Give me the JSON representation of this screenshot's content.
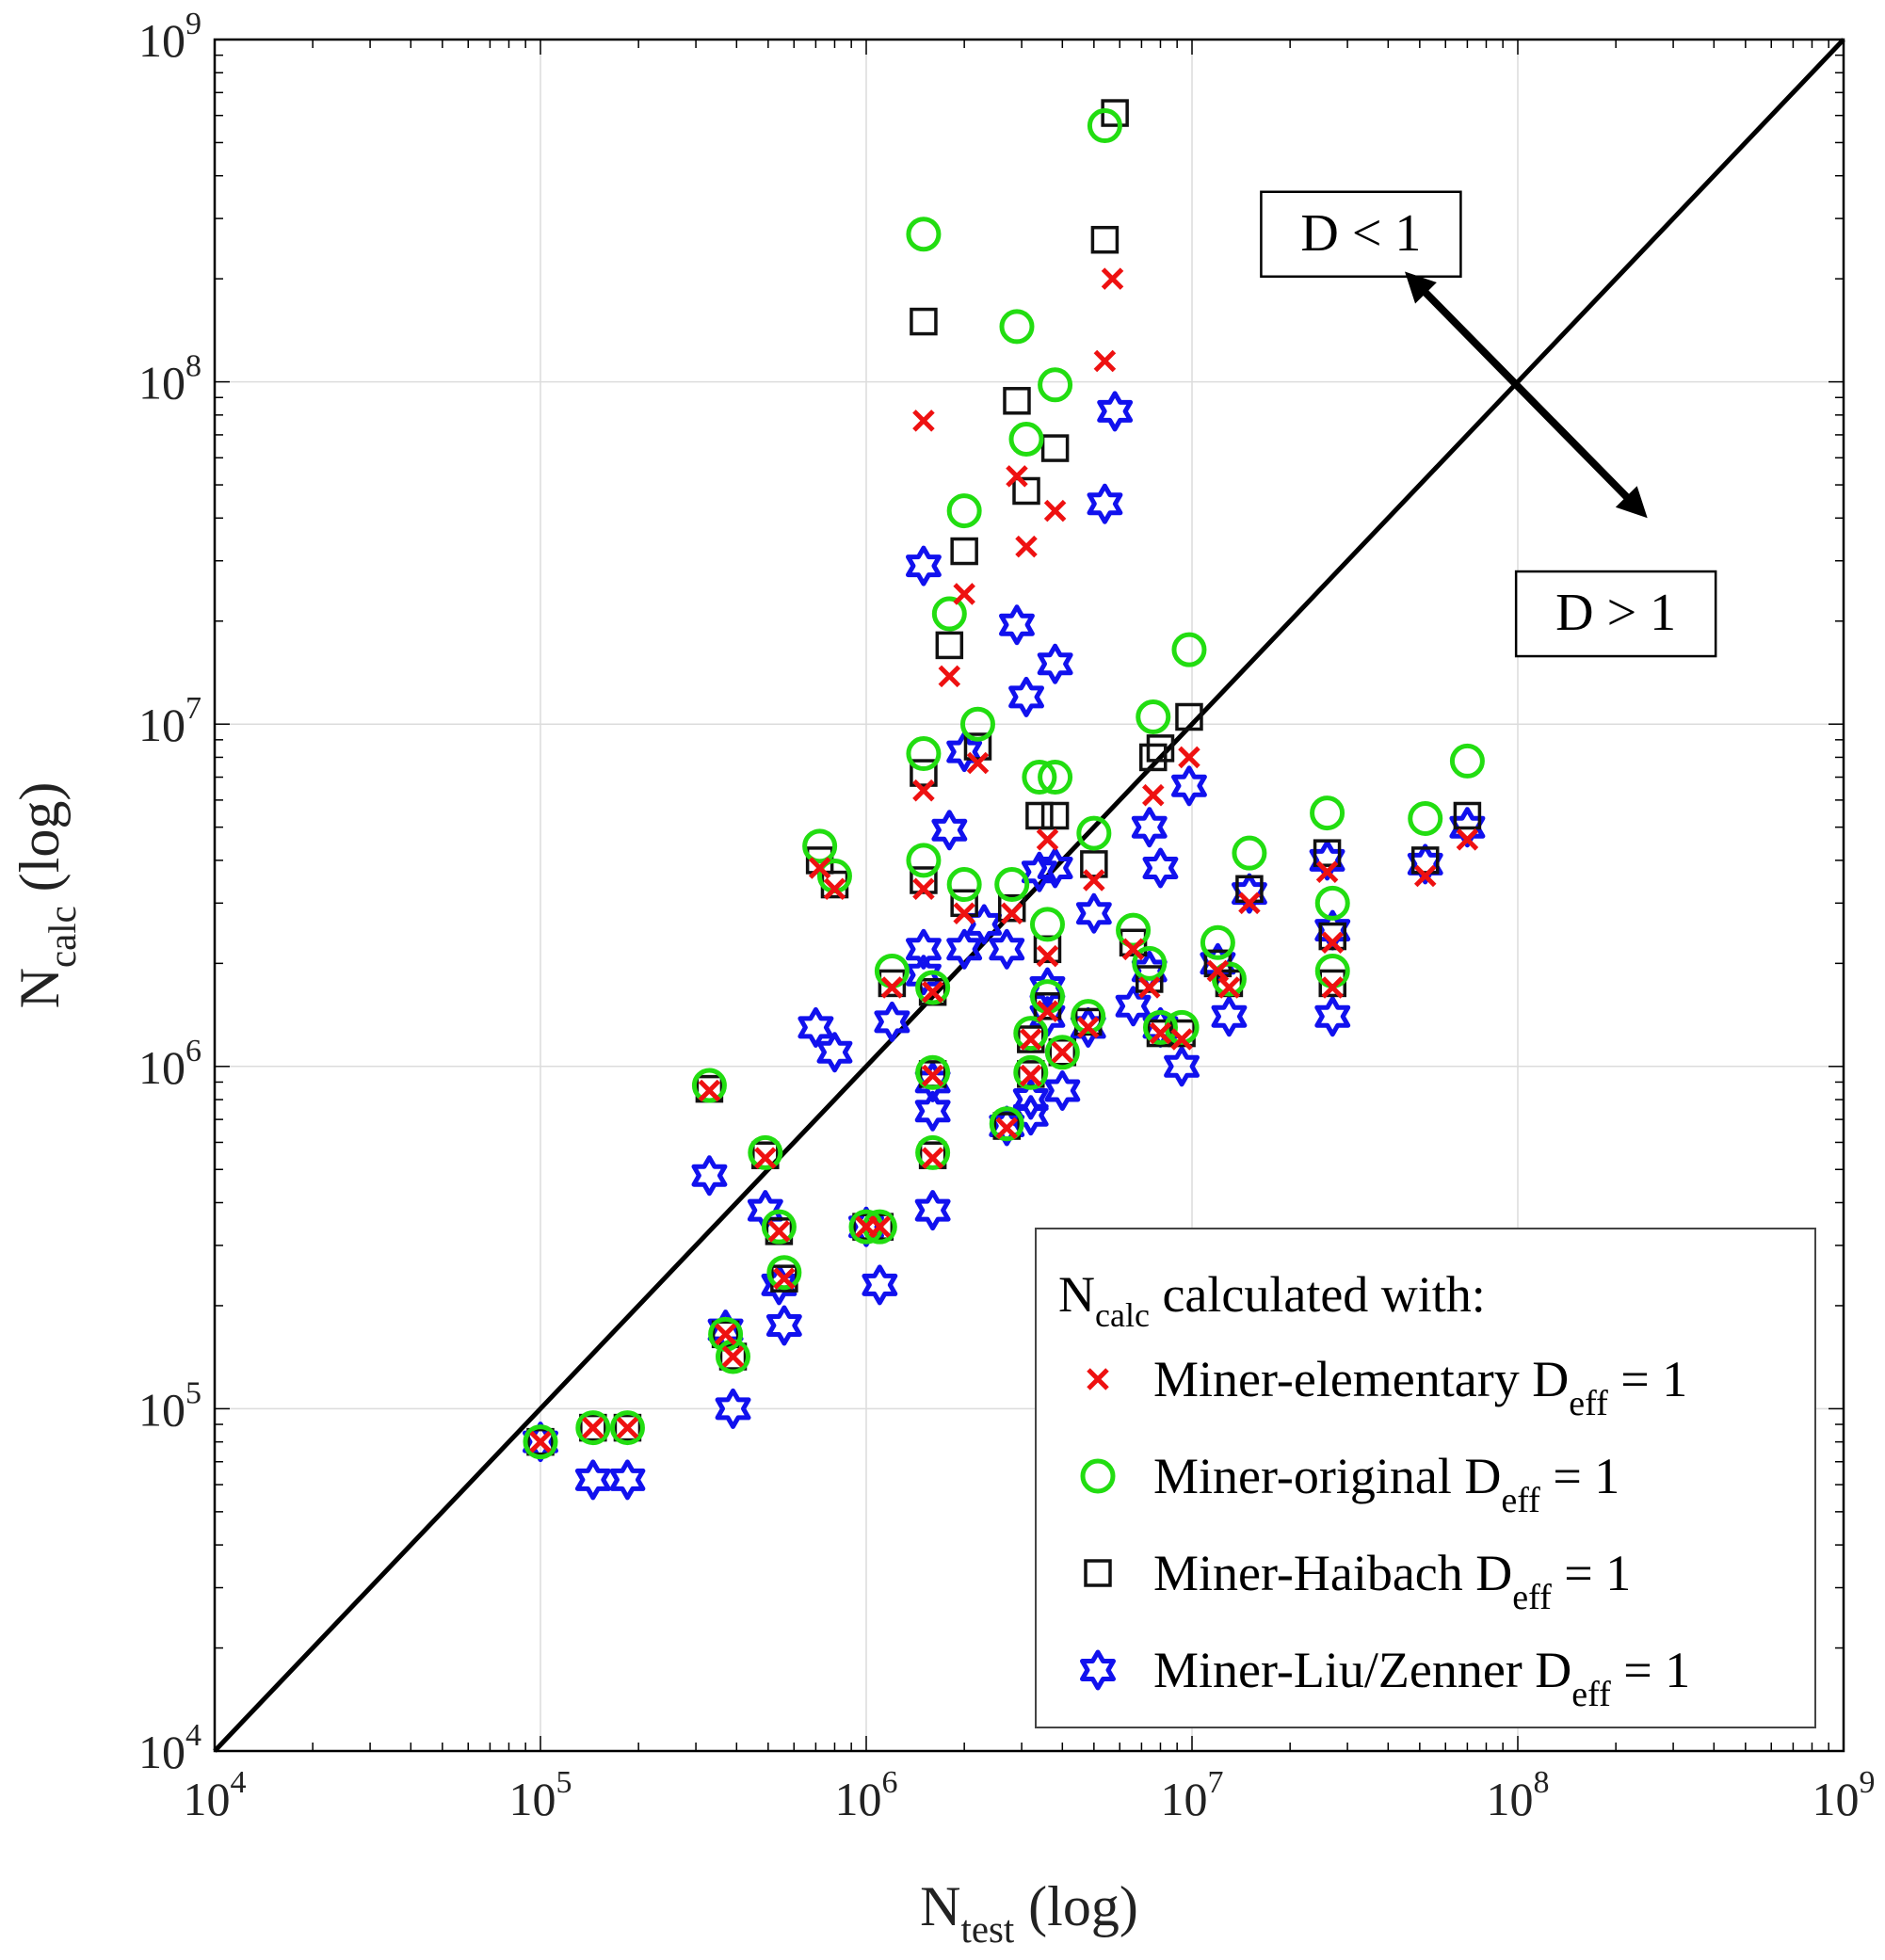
{
  "chart_data": {
    "type": "scatter",
    "x_scale": "log",
    "y_scale": "log",
    "xlim": [
      10000,
      1000000000
    ],
    "ylim": [
      10000,
      1000000000
    ],
    "grid": true,
    "xlabel": {
      "main": "N",
      "sub": "test",
      "suffix": " (log)"
    },
    "ylabel": {
      "main": "N",
      "sub": "calc",
      "suffix": " (log)"
    },
    "x_ticks": [
      {
        "value": 10000,
        "base": "10",
        "exp": "4"
      },
      {
        "value": 100000,
        "base": "10",
        "exp": "5"
      },
      {
        "value": 1000000,
        "base": "10",
        "exp": "6"
      },
      {
        "value": 10000000,
        "base": "10",
        "exp": "7"
      },
      {
        "value": 100000000,
        "base": "10",
        "exp": "8"
      },
      {
        "value": 1000000000,
        "base": "10",
        "exp": "9"
      }
    ],
    "y_ticks": [
      {
        "value": 10000,
        "base": "10",
        "exp": "4"
      },
      {
        "value": 100000,
        "base": "10",
        "exp": "5"
      },
      {
        "value": 1000000,
        "base": "10",
        "exp": "6"
      },
      {
        "value": 10000000,
        "base": "10",
        "exp": "7"
      },
      {
        "value": 100000000,
        "base": "10",
        "exp": "8"
      },
      {
        "value": 1000000000,
        "base": "10",
        "exp": "9"
      }
    ],
    "reference_line": {
      "from": [
        10000,
        10000
      ],
      "to": [
        1000000000,
        1000000000
      ],
      "color": "#000000"
    },
    "annotations": [
      {
        "id": "d-less",
        "text": "D < 1",
        "x": 33000000,
        "y": 270000000
      },
      {
        "id": "d-greater",
        "text": "D > 1",
        "x": 200000000,
        "y": 21000000
      }
    ],
    "double_arrow": {
      "from": [
        45000000,
        210000000
      ],
      "to": [
        250000000,
        40000000
      ]
    },
    "legend": {
      "placement": "bottom-right",
      "title": {
        "main": "N",
        "sub": "calc",
        "suffix": " calculated with:"
      }
    },
    "series": [
      {
        "name": "Miner-elementary",
        "sub": "eff",
        "suffix": " = 1",
        "name_prefix": "D",
        "marker": "x",
        "color": "#ee1111",
        "points": [
          [
            100000.0,
            80000.0
          ],
          [
            145000.0,
            88000.0
          ],
          [
            185000.0,
            88000.0
          ],
          [
            330000.0,
            850000.0
          ],
          [
            370000.0,
            165000.0
          ],
          [
            390000.0,
            142000.0
          ],
          [
            490000.0,
            540000.0
          ],
          [
            540000.0,
            330000.0
          ],
          [
            560000.0,
            240000.0
          ],
          [
            720000.0,
            3800000.0
          ],
          [
            800000.0,
            3300000.0
          ],
          [
            1000000.0,
            340000.0
          ],
          [
            1100000.0,
            340000.0
          ],
          [
            1200000.0,
            1700000.0
          ],
          [
            1500000.0,
            77000000.0
          ],
          [
            1500000.0,
            6400000.0
          ],
          [
            1500000.0,
            3300000.0
          ],
          [
            1600000.0,
            540000.0
          ],
          [
            1600000.0,
            940000.0
          ],
          [
            1600000.0,
            1650000.0
          ],
          [
            1800000.0,
            13800000.0
          ],
          [
            2000000.0,
            24000000.0
          ],
          [
            2000000.0,
            2800000.0
          ],
          [
            2200000.0,
            7700000.0
          ],
          [
            2700000.0,
            660000.0
          ],
          [
            2800000.0,
            2800000.0
          ],
          [
            2900000.0,
            53000000.0
          ],
          [
            3100000.0,
            33000000.0
          ],
          [
            3200000.0,
            940000.0
          ],
          [
            3200000.0,
            1200000.0
          ],
          [
            3600000.0,
            4600000.0
          ],
          [
            3600000.0,
            2100000.0
          ],
          [
            3600000.0,
            1450000.0
          ],
          [
            3800000.0,
            42000000.0
          ],
          [
            4000000.0,
            1100000.0
          ],
          [
            4800000.0,
            1300000.0
          ],
          [
            5000000.0,
            3500000.0
          ],
          [
            5400000.0,
            115000000.0
          ],
          [
            5700000.0,
            200000000.0
          ],
          [
            6600000.0,
            2200000.0
          ],
          [
            7400000.0,
            1700000.0
          ],
          [
            7600000.0,
            6200000.0
          ],
          [
            8000000.0,
            1250000.0
          ],
          [
            9300000.0,
            1200000.0
          ],
          [
            9800000.0,
            8000000.0
          ],
          [
            12000000.0,
            1900000.0
          ],
          [
            13000000.0,
            1700000.0
          ],
          [
            15000000.0,
            3000000.0
          ],
          [
            26000000.0,
            3700000.0
          ],
          [
            27000000.0,
            2300000.0
          ],
          [
            27000000.0,
            1700000.0
          ],
          [
            52000000.0,
            3600000.0
          ],
          [
            70000000.0,
            4600000.0
          ]
        ]
      },
      {
        "name": "Miner-original",
        "sub": "eff",
        "suffix": " = 1",
        "name_prefix": "D",
        "marker": "circle",
        "color": "#22dd11",
        "points": [
          [
            100000.0,
            80000.0
          ],
          [
            145000.0,
            88000.0
          ],
          [
            185000.0,
            88000.0
          ],
          [
            330000.0,
            880000.0
          ],
          [
            370000.0,
            165000.0
          ],
          [
            390000.0,
            142000.0
          ],
          [
            490000.0,
            560000.0
          ],
          [
            540000.0,
            340000.0
          ],
          [
            560000.0,
            250000.0
          ],
          [
            720000.0,
            4400000.0
          ],
          [
            800000.0,
            3600000.0
          ],
          [
            1000000.0,
            340000.0
          ],
          [
            1100000.0,
            340000.0
          ],
          [
            1200000.0,
            1900000.0
          ],
          [
            1500000.0,
            270000000.0
          ],
          [
            1500000.0,
            8200000.0
          ],
          [
            1500000.0,
            4000000.0
          ],
          [
            1600000.0,
            560000.0
          ],
          [
            1600000.0,
            960000.0
          ],
          [
            1600000.0,
            1700000.0
          ],
          [
            1800000.0,
            21000000.0
          ],
          [
            2000000.0,
            42000000.0
          ],
          [
            2000000.0,
            3400000.0
          ],
          [
            2200000.0,
            10000000.0
          ],
          [
            2700000.0,
            680000.0
          ],
          [
            2800000.0,
            3400000.0
          ],
          [
            2900000.0,
            145000000.0
          ],
          [
            3100000.0,
            68000000.0
          ],
          [
            3200000.0,
            960000.0
          ],
          [
            3200000.0,
            1250000.0
          ],
          [
            3400000.0,
            7000000.0
          ],
          [
            3800000.0,
            7000000.0
          ],
          [
            3600000.0,
            2600000.0
          ],
          [
            3600000.0,
            1600000.0
          ],
          [
            3800000.0,
            98000000.0
          ],
          [
            4000000.0,
            1100000.0
          ],
          [
            4800000.0,
            1400000.0
          ],
          [
            5000000.0,
            4800000.0
          ],
          [
            5400000.0,
            560000000.0
          ],
          [
            6600000.0,
            2500000.0
          ],
          [
            7400000.0,
            2000000.0
          ],
          [
            7600000.0,
            10500000.0
          ],
          [
            8000000.0,
            1300000.0
          ],
          [
            9300000.0,
            1300000.0
          ],
          [
            9800000.0,
            16500000.0
          ],
          [
            12000000.0,
            2300000.0
          ],
          [
            13000000.0,
            1800000.0
          ],
          [
            15000000.0,
            4200000.0
          ],
          [
            26000000.0,
            5500000.0
          ],
          [
            27000000.0,
            3000000.0
          ],
          [
            27000000.0,
            1900000.0
          ],
          [
            52000000.0,
            5300000.0
          ],
          [
            70000000.0,
            7800000.0
          ]
        ]
      },
      {
        "name": "Miner-Haibach",
        "sub": "eff",
        "suffix": " = 1",
        "name_prefix": "D",
        "marker": "square",
        "color": "#111111",
        "points": [
          [
            100000.0,
            80000.0
          ],
          [
            145000.0,
            88000.0
          ],
          [
            185000.0,
            88000.0
          ],
          [
            330000.0,
            860000.0
          ],
          [
            370000.0,
            165000.0
          ],
          [
            390000.0,
            142000.0
          ],
          [
            490000.0,
            550000.0
          ],
          [
            540000.0,
            330000.0
          ],
          [
            560000.0,
            240000.0
          ],
          [
            720000.0,
            4000000.0
          ],
          [
            800000.0,
            3400000.0
          ],
          [
            1000000.0,
            340000.0
          ],
          [
            1100000.0,
            340000.0
          ],
          [
            1200000.0,
            1750000.0
          ],
          [
            1500000.0,
            150000000.0
          ],
          [
            1500000.0,
            7200000.0
          ],
          [
            1500000.0,
            3500000.0
          ],
          [
            1600000.0,
            550000.0
          ],
          [
            1600000.0,
            950000.0
          ],
          [
            1600000.0,
            1650000.0
          ],
          [
            1800000.0,
            17000000.0
          ],
          [
            2000000.0,
            32000000.0
          ],
          [
            2000000.0,
            3000000.0
          ],
          [
            2200000.0,
            8600000.0
          ],
          [
            2700000.0,
            670000.0
          ],
          [
            2800000.0,
            2900000.0
          ],
          [
            2900000.0,
            88000000.0
          ],
          [
            3100000.0,
            48000000.0
          ],
          [
            3200000.0,
            950000.0
          ],
          [
            3200000.0,
            1200000.0
          ],
          [
            3400000.0,
            5400000.0
          ],
          [
            3800000.0,
            5400000.0
          ],
          [
            3600000.0,
            2200000.0
          ],
          [
            3600000.0,
            1500000.0
          ],
          [
            3800000.0,
            64000000.0
          ],
          [
            4000000.0,
            1100000.0
          ],
          [
            4800000.0,
            1350000.0
          ],
          [
            5000000.0,
            3900000.0
          ],
          [
            5400000.0,
            260000000.0
          ],
          [
            5800000.0,
            610000000.0
          ],
          [
            6600000.0,
            2300000.0
          ],
          [
            7400000.0,
            1800000.0
          ],
          [
            7600000.0,
            8000000.0
          ],
          [
            8000000.0,
            8500000.0
          ],
          [
            8000000.0,
            1250000.0
          ],
          [
            9300000.0,
            1250000.0
          ],
          [
            9800000.0,
            10500000.0
          ],
          [
            12000000.0,
            2000000.0
          ],
          [
            13000000.0,
            1750000.0
          ],
          [
            15000000.0,
            3300000.0
          ],
          [
            26000000.0,
            4200000.0
          ],
          [
            27000000.0,
            2400000.0
          ],
          [
            27000000.0,
            1750000.0
          ],
          [
            52000000.0,
            4000000.0
          ],
          [
            70000000.0,
            5400000.0
          ]
        ]
      },
      {
        "name": "Miner-Liu/Zenner",
        "sub": "eff",
        "suffix": " = 1",
        "name_prefix": "D",
        "marker": "hexagram",
        "color": "#1111ee",
        "points": [
          [
            100000.0,
            80000.0
          ],
          [
            145000.0,
            62000.0
          ],
          [
            185000.0,
            62000.0
          ],
          [
            330000.0,
            480000.0
          ],
          [
            370000.0,
            170000.0
          ],
          [
            390000.0,
            100000.0
          ],
          [
            490000.0,
            380000.0
          ],
          [
            540000.0,
            230000.0
          ],
          [
            560000.0,
            175000.0
          ],
          [
            700000.0,
            1300000.0
          ],
          [
            800000.0,
            1100000.0
          ],
          [
            1000000.0,
            340000.0
          ],
          [
            1100000.0,
            230000.0
          ],
          [
            1200000.0,
            1350000.0
          ],
          [
            1500000.0,
            2200000.0
          ],
          [
            1500000.0,
            1850000.0
          ],
          [
            1500000.0,
            29000000.0
          ],
          [
            1600000.0,
            900000.0
          ],
          [
            1600000.0,
            740000.0
          ],
          [
            1600000.0,
            380000.0
          ],
          [
            1800000.0,
            4900000.0
          ],
          [
            2000000.0,
            8300000.0
          ],
          [
            2000000.0,
            2200000.0
          ],
          [
            2300000.0,
            2600000.0
          ],
          [
            2700000.0,
            670000.0
          ],
          [
            2700000.0,
            2200000.0
          ],
          [
            2900000.0,
            19500000.0
          ],
          [
            3100000.0,
            12000000.0
          ],
          [
            3200000.0,
            800000.0
          ],
          [
            3200000.0,
            720000.0
          ],
          [
            3400000.0,
            3700000.0
          ],
          [
            3600000.0,
            1700000.0
          ],
          [
            3600000.0,
            1400000.0
          ],
          [
            3800000.0,
            15000000.0
          ],
          [
            3800000.0,
            3800000.0
          ],
          [
            4000000.0,
            850000.0
          ],
          [
            4800000.0,
            1300000.0
          ],
          [
            5000000.0,
            2800000.0
          ],
          [
            5400000.0,
            44000000.0
          ],
          [
            5800000.0,
            82000000.0
          ],
          [
            6600000.0,
            1500000.0
          ],
          [
            7400000.0,
            1900000.0
          ],
          [
            7400000.0,
            5000000.0
          ],
          [
            8000000.0,
            3800000.0
          ],
          [
            8000000.0,
            1300000.0
          ],
          [
            9300000.0,
            1000000.0
          ],
          [
            9800000.0,
            6600000.0
          ],
          [
            12000000.0,
            2000000.0
          ],
          [
            13000000.0,
            1400000.0
          ],
          [
            15000000.0,
            3200000.0
          ],
          [
            26000000.0,
            4000000.0
          ],
          [
            27000000.0,
            2500000.0
          ],
          [
            27000000.0,
            1400000.0
          ],
          [
            52000000.0,
            3900000.0
          ],
          [
            70000000.0,
            5000000.0
          ]
        ]
      }
    ]
  }
}
